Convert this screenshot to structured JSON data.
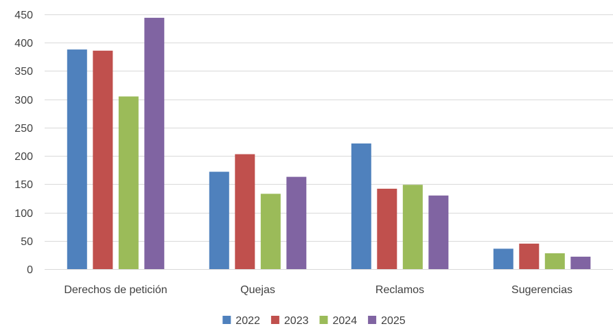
{
  "chart_data": {
    "type": "bar",
    "categories": [
      "Derechos de petición",
      "Quejas",
      "Reclamos",
      "Sugerencias"
    ],
    "series": [
      {
        "name": "2022",
        "values": [
          388,
          172,
          222,
          36
        ],
        "color": "#4F81BD"
      },
      {
        "name": "2023",
        "values": [
          386,
          203,
          142,
          45
        ],
        "color": "#C0504D"
      },
      {
        "name": "2024",
        "values": [
          305,
          133,
          149,
          28
        ],
        "color": "#9BBB59"
      },
      {
        "name": "2025",
        "values": [
          444,
          163,
          130,
          22
        ],
        "color": "#8064A2"
      }
    ],
    "title": "",
    "xlabel": "",
    "ylabel": "",
    "ylim": [
      0,
      450
    ],
    "yticks": [
      0,
      50,
      100,
      150,
      200,
      250,
      300,
      350,
      400,
      450
    ],
    "grid": "horizontal",
    "legend_position": "bottom"
  }
}
